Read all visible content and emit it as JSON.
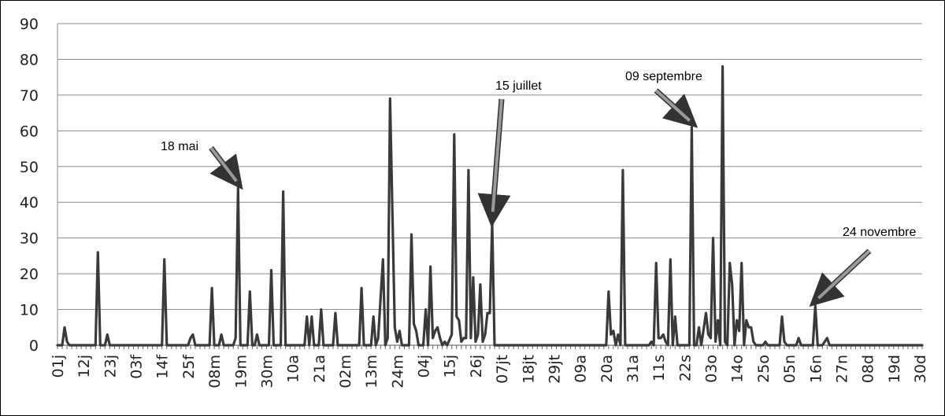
{
  "chart_data": {
    "type": "line",
    "title": "",
    "xlabel": "",
    "ylabel": "",
    "ylim": [
      0,
      90
    ],
    "yticks": [
      0,
      10,
      20,
      30,
      40,
      50,
      60,
      70,
      80,
      90
    ],
    "grid": true,
    "legend": "none",
    "n_days": 365,
    "x_tick_labels": [
      "01j",
      "12j",
      "23j",
      "03f",
      "14f",
      "25f",
      "08m",
      "19m",
      "30m",
      "10a",
      "21a",
      "02m",
      "13m",
      "24m",
      "04j",
      "15j",
      "26j",
      "07jt",
      "18jt",
      "29jt",
      "09a",
      "20a",
      "31a",
      "11s",
      "22s",
      "03o",
      "14o",
      "25o",
      "05n",
      "16n",
      "27n",
      "08d",
      "19d",
      "30d"
    ],
    "series": [
      {
        "color": "#3a3a3a",
        "points": [
          {
            "x": 1,
            "y": 0
          },
          {
            "x": 3,
            "y": 0
          },
          {
            "x": 4,
            "y": 5
          },
          {
            "x": 5,
            "y": 1
          },
          {
            "x": 6,
            "y": 0
          },
          {
            "x": 17,
            "y": 0
          },
          {
            "x": 18,
            "y": 26
          },
          {
            "x": 19,
            "y": 0
          },
          {
            "x": 21,
            "y": 0
          },
          {
            "x": 22,
            "y": 3
          },
          {
            "x": 23,
            "y": 0
          },
          {
            "x": 45,
            "y": 0
          },
          {
            "x": 46,
            "y": 24
          },
          {
            "x": 47,
            "y": 0
          },
          {
            "x": 56,
            "y": 0
          },
          {
            "x": 57,
            "y": 2
          },
          {
            "x": 58,
            "y": 3
          },
          {
            "x": 59,
            "y": 0
          },
          {
            "x": 65,
            "y": 0
          },
          {
            "x": 66,
            "y": 16
          },
          {
            "x": 67,
            "y": 0
          },
          {
            "x": 69,
            "y": 0
          },
          {
            "x": 70,
            "y": 3
          },
          {
            "x": 71,
            "y": 0
          },
          {
            "x": 75,
            "y": 0
          },
          {
            "x": 76,
            "y": 2
          },
          {
            "x": 77,
            "y": 44
          },
          {
            "x": 78,
            "y": 0
          },
          {
            "x": 81,
            "y": 0
          },
          {
            "x": 82,
            "y": 15
          },
          {
            "x": 83,
            "y": 0
          },
          {
            "x": 84,
            "y": 0
          },
          {
            "x": 85,
            "y": 3
          },
          {
            "x": 86,
            "y": 0
          },
          {
            "x": 90,
            "y": 0
          },
          {
            "x": 91,
            "y": 21
          },
          {
            "x": 92,
            "y": 0
          },
          {
            "x": 95,
            "y": 0
          },
          {
            "x": 96,
            "y": 43
          },
          {
            "x": 97,
            "y": 0
          },
          {
            "x": 105,
            "y": 0
          },
          {
            "x": 106,
            "y": 8
          },
          {
            "x": 107,
            "y": 0
          },
          {
            "x": 108,
            "y": 8
          },
          {
            "x": 109,
            "y": 0
          },
          {
            "x": 111,
            "y": 0
          },
          {
            "x": 112,
            "y": 10
          },
          {
            "x": 113,
            "y": 0
          },
          {
            "x": 117,
            "y": 0
          },
          {
            "x": 118,
            "y": 9
          },
          {
            "x": 119,
            "y": 0
          },
          {
            "x": 128,
            "y": 0
          },
          {
            "x": 129,
            "y": 16
          },
          {
            "x": 130,
            "y": 0
          },
          {
            "x": 133,
            "y": 0
          },
          {
            "x": 134,
            "y": 8
          },
          {
            "x": 135,
            "y": 0
          },
          {
            "x": 136,
            "y": 2
          },
          {
            "x": 138,
            "y": 24
          },
          {
            "x": 139,
            "y": 0
          },
          {
            "x": 140,
            "y": 2
          },
          {
            "x": 141,
            "y": 69
          },
          {
            "x": 143,
            "y": 5
          },
          {
            "x": 144,
            "y": 1
          },
          {
            "x": 145,
            "y": 4
          },
          {
            "x": 146,
            "y": 0
          },
          {
            "x": 149,
            "y": 0
          },
          {
            "x": 150,
            "y": 31
          },
          {
            "x": 151,
            "y": 6
          },
          {
            "x": 152,
            "y": 4
          },
          {
            "x": 153,
            "y": 0
          },
          {
            "x": 155,
            "y": 0
          },
          {
            "x": 156,
            "y": 10
          },
          {
            "x": 157,
            "y": 0
          },
          {
            "x": 158,
            "y": 22
          },
          {
            "x": 159,
            "y": 2
          },
          {
            "x": 160,
            "y": 4
          },
          {
            "x": 161,
            "y": 5
          },
          {
            "x": 162,
            "y": 2
          },
          {
            "x": 163,
            "y": 0
          },
          {
            "x": 164,
            "y": 1
          },
          {
            "x": 165,
            "y": 0
          },
          {
            "x": 167,
            "y": 3
          },
          {
            "x": 168,
            "y": 59
          },
          {
            "x": 169,
            "y": 8
          },
          {
            "x": 170,
            "y": 7
          },
          {
            "x": 171,
            "y": 1
          },
          {
            "x": 172,
            "y": 2
          },
          {
            "x": 173,
            "y": 2
          },
          {
            "x": 174,
            "y": 49
          },
          {
            "x": 175,
            "y": 2
          },
          {
            "x": 176,
            "y": 19
          },
          {
            "x": 177,
            "y": 1
          },
          {
            "x": 178,
            "y": 3
          },
          {
            "x": 179,
            "y": 17
          },
          {
            "x": 180,
            "y": 1
          },
          {
            "x": 181,
            "y": 3
          },
          {
            "x": 182,
            "y": 9
          },
          {
            "x": 183,
            "y": 9
          },
          {
            "x": 184,
            "y": 34
          },
          {
            "x": 185,
            "y": 0
          },
          {
            "x": 232,
            "y": 0
          },
          {
            "x": 233,
            "y": 15
          },
          {
            "x": 234,
            "y": 3
          },
          {
            "x": 235,
            "y": 4
          },
          {
            "x": 236,
            "y": 0
          },
          {
            "x": 237,
            "y": 3
          },
          {
            "x": 238,
            "y": 0
          },
          {
            "x": 239,
            "y": 49
          },
          {
            "x": 240,
            "y": 0
          },
          {
            "x": 250,
            "y": 0
          },
          {
            "x": 251,
            "y": 1
          },
          {
            "x": 252,
            "y": 0
          },
          {
            "x": 253,
            "y": 23
          },
          {
            "x": 254,
            "y": 2
          },
          {
            "x": 255,
            "y": 2
          },
          {
            "x": 256,
            "y": 3
          },
          {
            "x": 257,
            "y": 1
          },
          {
            "x": 258,
            "y": 0
          },
          {
            "x": 259,
            "y": 24
          },
          {
            "x": 260,
            "y": 0
          },
          {
            "x": 261,
            "y": 8
          },
          {
            "x": 262,
            "y": 0
          },
          {
            "x": 267,
            "y": 0
          },
          {
            "x": 268,
            "y": 61
          },
          {
            "x": 269,
            "y": 0
          },
          {
            "x": 270,
            "y": 0
          },
          {
            "x": 271,
            "y": 5
          },
          {
            "x": 272,
            "y": 0
          },
          {
            "x": 274,
            "y": 9
          },
          {
            "x": 275,
            "y": 3
          },
          {
            "x": 276,
            "y": 2
          },
          {
            "x": 277,
            "y": 30
          },
          {
            "x": 278,
            "y": 1
          },
          {
            "x": 279,
            "y": 7
          },
          {
            "x": 280,
            "y": 0
          },
          {
            "x": 281,
            "y": 78
          },
          {
            "x": 282,
            "y": 1
          },
          {
            "x": 283,
            "y": 0
          },
          {
            "x": 284,
            "y": 23
          },
          {
            "x": 285,
            "y": 17
          },
          {
            "x": 286,
            "y": 0
          },
          {
            "x": 287,
            "y": 7
          },
          {
            "x": 288,
            "y": 4
          },
          {
            "x": 289,
            "y": 23
          },
          {
            "x": 290,
            "y": 0
          },
          {
            "x": 291,
            "y": 7
          },
          {
            "x": 292,
            "y": 5
          },
          {
            "x": 293,
            "y": 5
          },
          {
            "x": 294,
            "y": 1
          },
          {
            "x": 295,
            "y": 0
          },
          {
            "x": 298,
            "y": 0
          },
          {
            "x": 299,
            "y": 1
          },
          {
            "x": 300,
            "y": 0
          },
          {
            "x": 305,
            "y": 0
          },
          {
            "x": 306,
            "y": 8
          },
          {
            "x": 307,
            "y": 1
          },
          {
            "x": 308,
            "y": 0
          },
          {
            "x": 312,
            "y": 0
          },
          {
            "x": 313,
            "y": 2
          },
          {
            "x": 314,
            "y": 0
          },
          {
            "x": 319,
            "y": 0
          },
          {
            "x": 320,
            "y": 11
          },
          {
            "x": 321,
            "y": 0
          },
          {
            "x": 323,
            "y": 0
          },
          {
            "x": 324,
            "y": 1
          },
          {
            "x": 325,
            "y": 2
          },
          {
            "x": 326,
            "y": 0
          },
          {
            "x": 365,
            "y": 0
          }
        ]
      }
    ],
    "annotations": [
      {
        "text": "18 mai",
        "x": 77,
        "y": 44
      },
      {
        "text": "15 juillet",
        "x": 184,
        "y": 34
      },
      {
        "text": "09 septembre",
        "x": 268,
        "y": 61
      },
      {
        "text": "24 novembre",
        "x": 320,
        "y": 11
      }
    ]
  }
}
